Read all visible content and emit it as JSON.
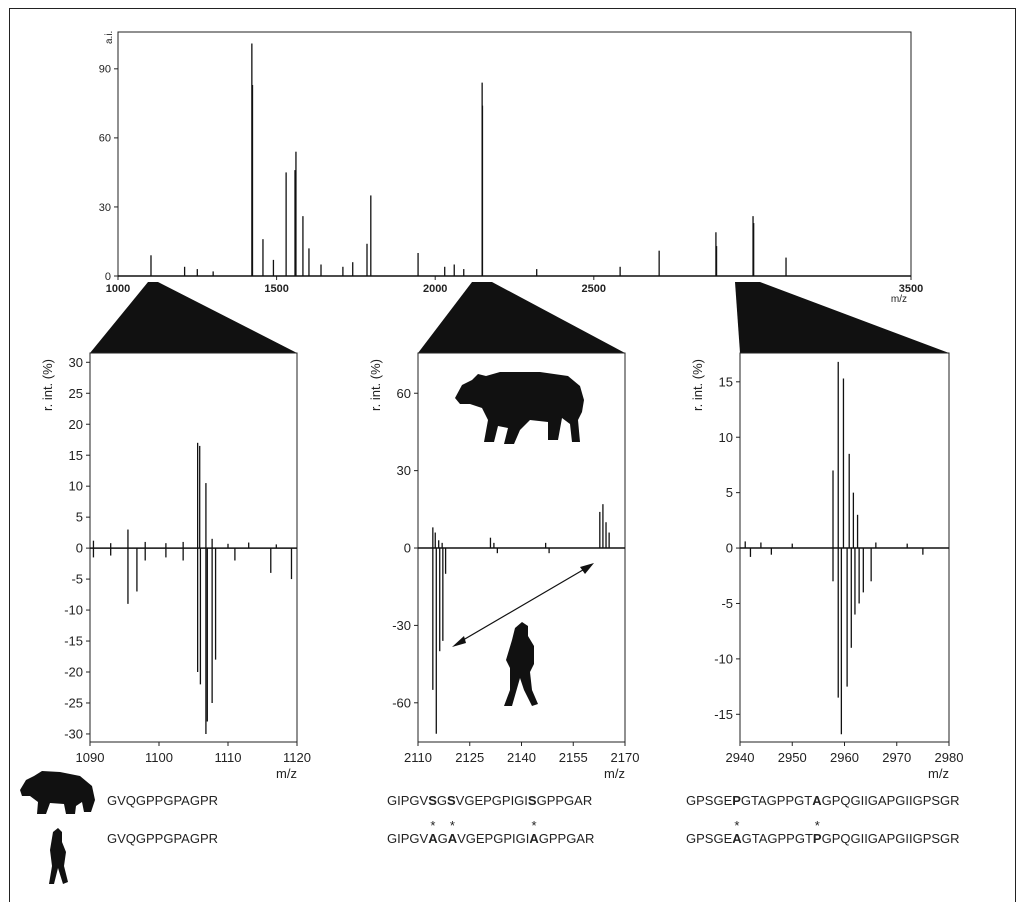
{
  "chart_data": [
    {
      "type": "stem",
      "y_label": "a.i.",
      "x_label": "m/z",
      "xlim": [
        1000,
        3500
      ],
      "xticks": [
        1000,
        1500,
        2000,
        2500,
        3500
      ],
      "ylim": [
        0,
        106
      ],
      "yticks": [
        0,
        30,
        60,
        90
      ],
      "series": [
        {
          "color": "#111111",
          "x": [
            1104,
            1210,
            1250,
            1300,
            1422,
            1424,
            1457,
            1490,
            1530,
            1558,
            1561,
            1583,
            1602,
            1640,
            1709,
            1740,
            1785,
            1797,
            1946,
            2030,
            2060,
            2090,
            2148,
            2149,
            2320,
            2583,
            2706,
            2885,
            2887,
            3002,
            3004,
            3106
          ],
          "values": [
            9,
            4,
            3,
            2,
            101,
            83,
            16,
            7,
            45,
            46,
            54,
            26,
            12,
            5,
            4,
            6,
            14,
            35,
            10,
            4,
            5,
            3,
            84,
            74,
            3,
            4,
            11,
            19,
            13,
            26,
            23,
            8
          ]
        }
      ]
    },
    {
      "type": "stem",
      "y_label": "r. int. (%)",
      "x_label": "m/z",
      "xlim": [
        1090,
        1120
      ],
      "xticks": [
        1090,
        1100,
        1110,
        1120
      ],
      "ylim": [
        -31.3,
        31.5
      ],
      "yticks": [
        30,
        25,
        20,
        15,
        10,
        5,
        0,
        -5,
        -10,
        -15,
        -20,
        -25,
        -30
      ],
      "series": [
        {
          "color": "#111111",
          "x": [
            1090.5,
            1093,
            1095.5,
            1098,
            1101,
            1103.5,
            1105.6,
            1105.9,
            1106.8,
            1107.7,
            1110,
            1113,
            1117
          ],
          "values": [
            1.2,
            0.8,
            3,
            1,
            0.8,
            1,
            17,
            16.5,
            10.5,
            1.5,
            0.7,
            0.9,
            0.6
          ]
        },
        {
          "color": "#111111",
          "x": [
            1090.5,
            1093,
            1095.5,
            1096.8,
            1098,
            1101,
            1103.5,
            1105.6,
            1106,
            1106.8,
            1107,
            1107.7,
            1108.2,
            1111,
            1116.2,
            1119.2
          ],
          "values": [
            -1.5,
            -1.2,
            -9,
            -7,
            -2,
            -1.5,
            -2,
            -20,
            -22,
            -30,
            -28,
            -25,
            -18,
            -2,
            -4,
            -5
          ]
        }
      ]
    },
    {
      "type": "stem",
      "y_label": "r. int. (%)",
      "x_label": "m/z",
      "xlim": [
        2110,
        2170
      ],
      "xticks": [
        2110,
        2125,
        2140,
        2155,
        2170
      ],
      "ylim": [
        -75.2,
        75.6
      ],
      "yticks": [
        60,
        30,
        0,
        -30,
        -60
      ],
      "sequences": [
        [
          {
            "text": "GIPGV"
          },
          {
            "text": "S",
            "bold": true
          },
          {
            "text": "G"
          },
          {
            "text": "S",
            "bold": true
          },
          {
            "text": "VGEPGPIGI"
          },
          {
            "text": "S",
            "bold": true
          },
          {
            "text": "GPPGAR"
          }
        ],
        [
          {
            "text": "GIPGV"
          },
          {
            "text": "A",
            "bold": true,
            "mark": "*"
          },
          {
            "text": "G"
          },
          {
            "text": "A",
            "bold": true,
            "mark": "*"
          },
          {
            "text": "VGEPGPIGI"
          },
          {
            "text": "A",
            "bold": true,
            "mark": "*"
          },
          {
            "text": "GPPGAR"
          }
        ]
      ],
      "series": [
        {
          "color": "#111111",
          "x": [
            2114.3,
            2115,
            2116,
            2117,
            2131,
            2132,
            2147,
            2162.7,
            2163.6,
            2164.5,
            2165.4
          ],
          "values": [
            8,
            6,
            3,
            2,
            4,
            2,
            2,
            14,
            17,
            10,
            6
          ]
        },
        {
          "color": "#111111",
          "x": [
            2114.3,
            2115.3,
            2116.3,
            2117.2,
            2118,
            2133,
            2148
          ],
          "values": [
            -55,
            -72,
            -40,
            -36,
            -10,
            -2,
            -2
          ]
        }
      ]
    },
    {
      "type": "stem",
      "y_label": "r. int. (%)",
      "x_label": "m/z",
      "xlim": [
        2940,
        2980
      ],
      "xticks": [
        2940,
        2950,
        2960,
        2970,
        2980
      ],
      "ylim": [
        -17.5,
        17.6
      ],
      "yticks": [
        15,
        10,
        5,
        0,
        -5,
        -10,
        -15
      ],
      "sequences": [
        [
          {
            "text": "GPSGE"
          },
          {
            "text": "P",
            "bold": true
          },
          {
            "text": "GTAGPPGT"
          },
          {
            "text": "A",
            "bold": true
          },
          {
            "text": "GPQGIIGAPGIIGPSGR"
          }
        ],
        [
          {
            "text": "GPSGE"
          },
          {
            "text": "A",
            "bold": true,
            "mark": "*"
          },
          {
            "text": "GTAGPPGT"
          },
          {
            "text": "P",
            "bold": true,
            "mark": "*"
          },
          {
            "text": "GPQGIIGAPGIIGPSGR"
          }
        ]
      ],
      "series": [
        {
          "color": "#111111",
          "x": [
            2941,
            2944,
            2950,
            2957.8,
            2958.8,
            2959.8,
            2960.9,
            2961.7,
            2962.5,
            2966,
            2972
          ],
          "values": [
            0.6,
            0.5,
            0.4,
            7,
            16.8,
            15.3,
            8.5,
            5,
            3,
            0.5,
            0.4
          ]
        },
        {
          "color": "#111111",
          "x": [
            2942,
            2946,
            2957.8,
            2958.8,
            2959.4,
            2960.5,
            2961.3,
            2962,
            2962.8,
            2963.6,
            2965.1,
            2975
          ],
          "values": [
            -0.8,
            -0.6,
            -3,
            -13.5,
            -16.8,
            -12.5,
            -9,
            -6,
            -5,
            -4,
            -3,
            -0.6
          ]
        }
      ]
    }
  ],
  "first_sequences": [
    {
      "text": "GVQGPPGPAGPR"
    },
    {
      "text": "GVQGPPGPAGPR"
    }
  ]
}
